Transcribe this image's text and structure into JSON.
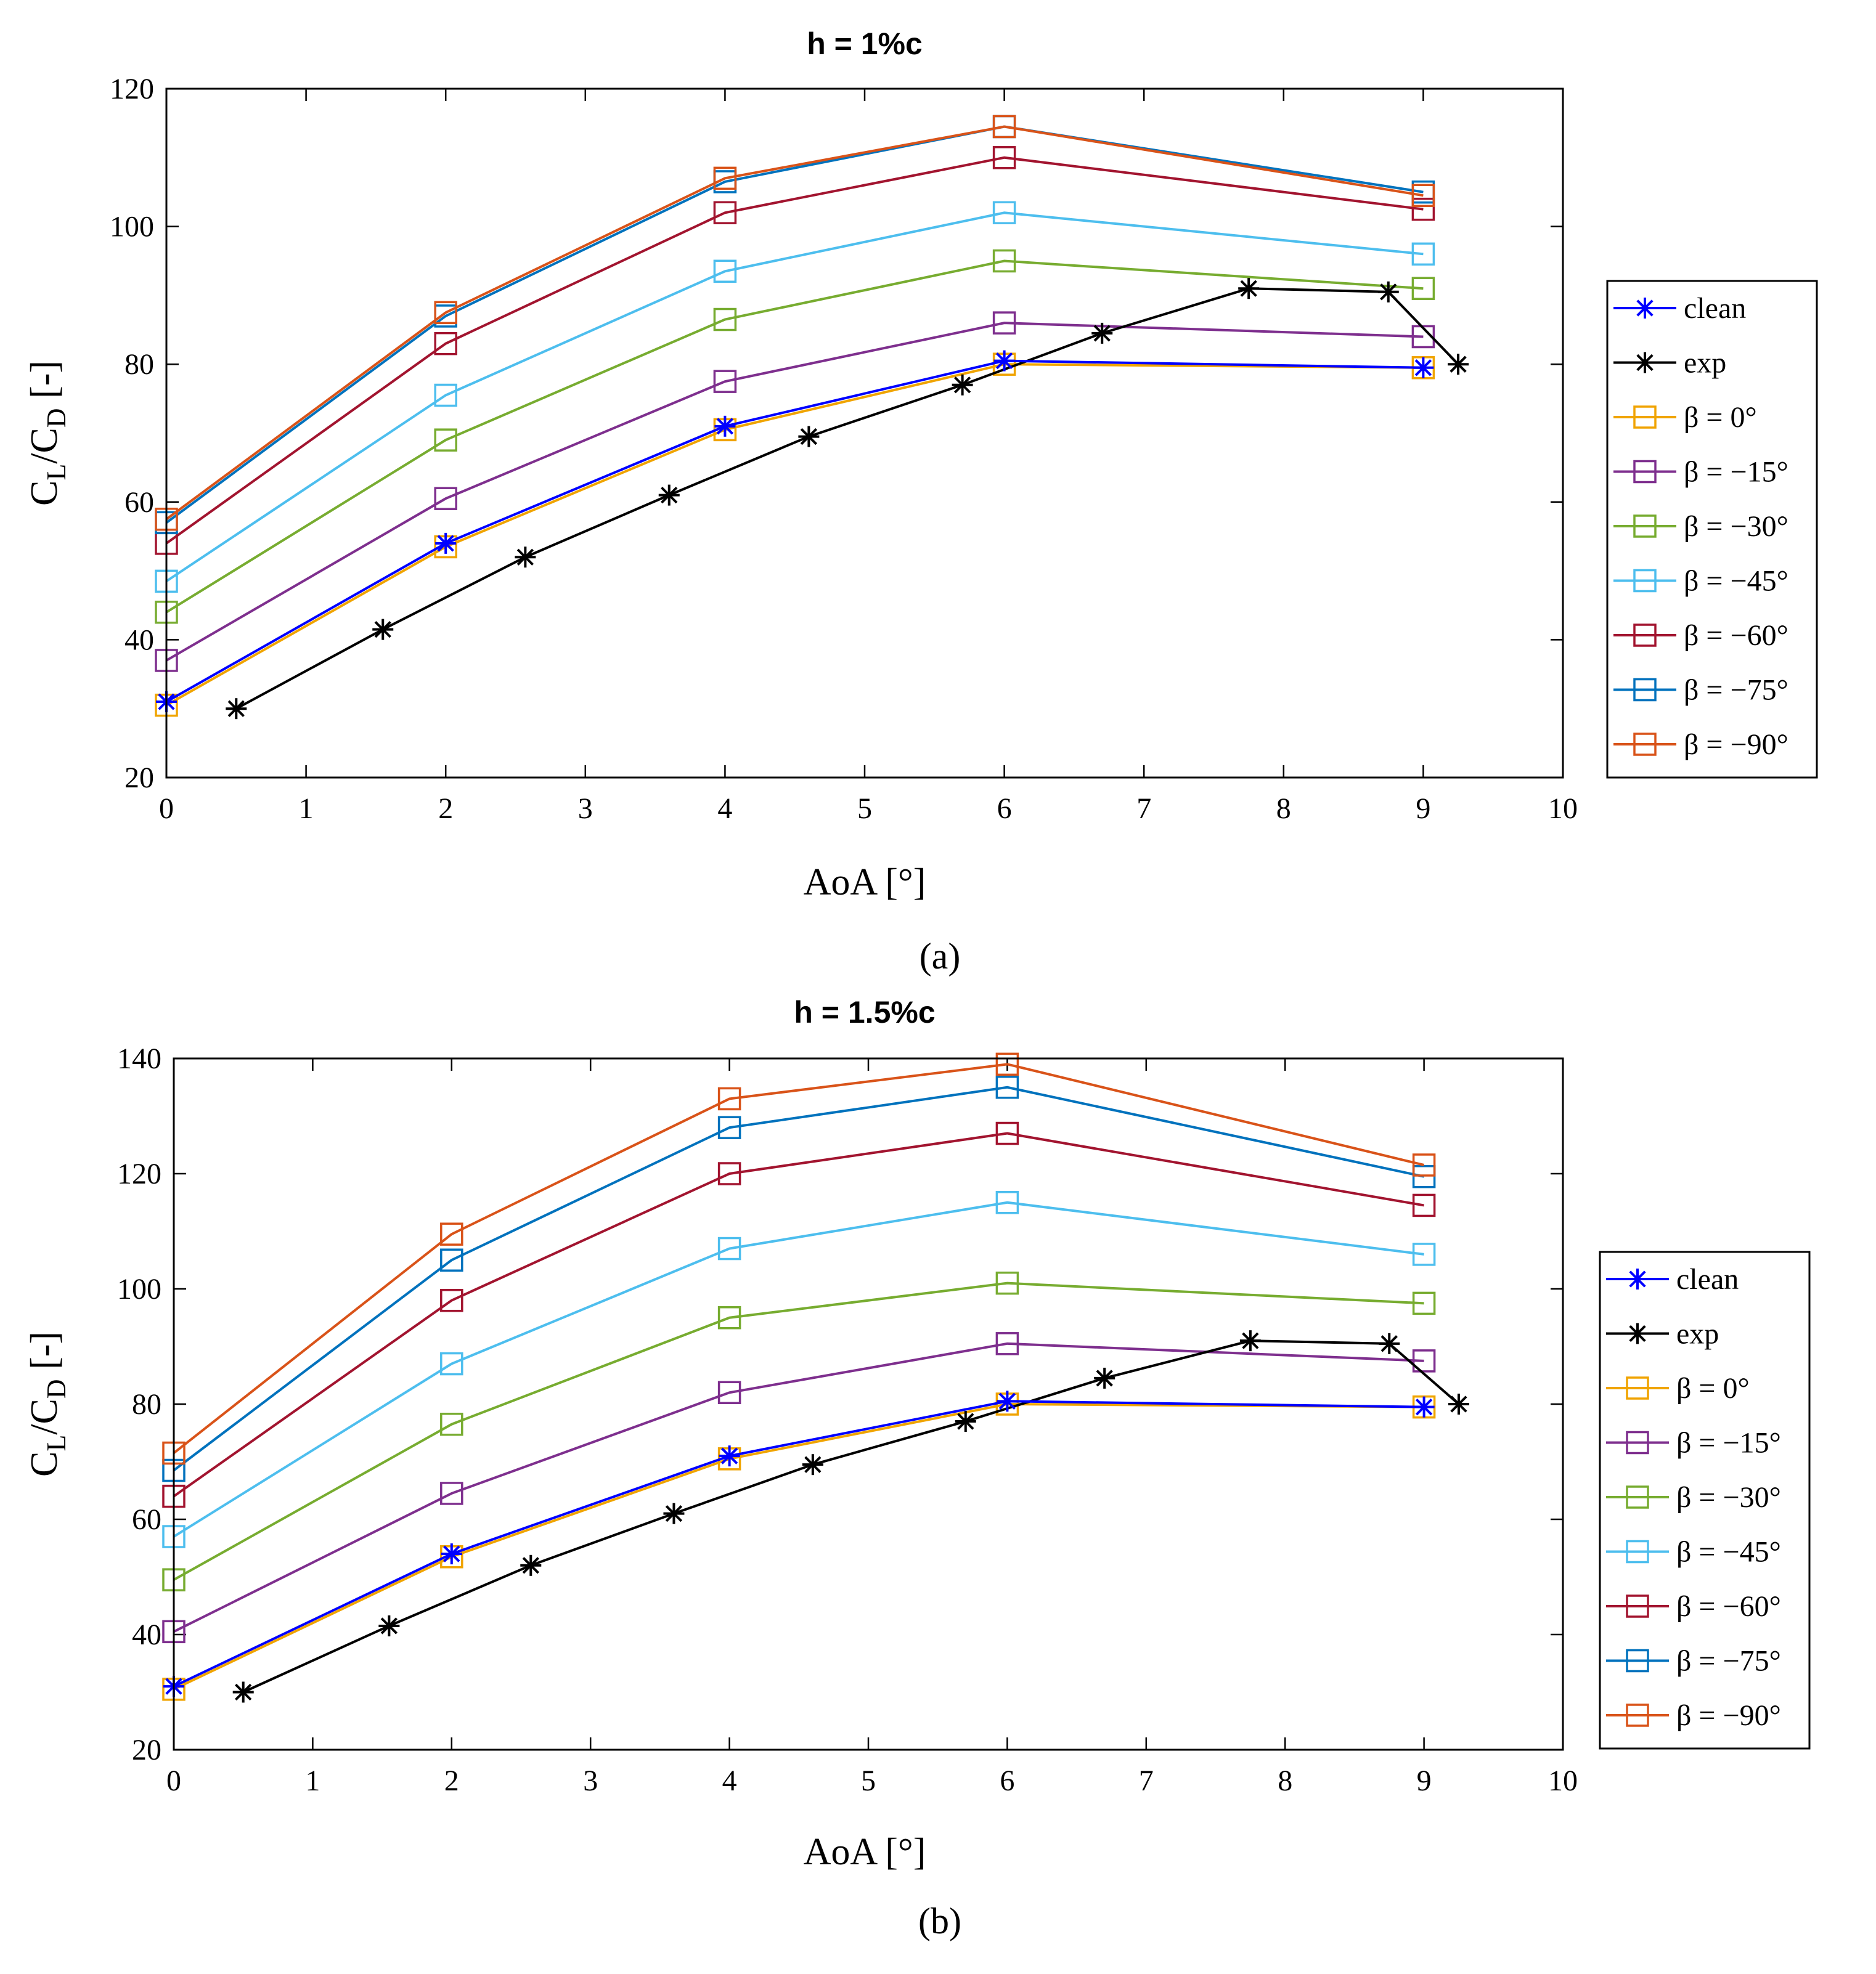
{
  "figure": {
    "captions": [
      "(a)",
      "(b)"
    ]
  },
  "chart_data": [
    {
      "type": "line",
      "title": "h = 1%c",
      "xlabel": "AoA [°]",
      "ylabel": "C_L/C_D [-]",
      "xlim": [
        0,
        10
      ],
      "ylim": [
        20,
        120
      ],
      "xticks": [
        0,
        1,
        2,
        3,
        4,
        5,
        6,
        7,
        8,
        9,
        10
      ],
      "yticks": [
        20,
        40,
        60,
        80,
        100,
        120
      ],
      "grid": false,
      "legend_position": "outside-right",
      "series": [
        {
          "name": "clean",
          "color": "#0000ff",
          "marker": "asterisk",
          "x": [
            0,
            2,
            4,
            6,
            9
          ],
          "y": [
            31,
            54,
            71,
            80.5,
            79.5
          ]
        },
        {
          "name": "exp",
          "color": "#000000",
          "marker": "asterisk",
          "x": [
            0.5,
            1.55,
            2.57,
            3.6,
            4.6,
            5.7,
            6.7,
            7.75,
            8.75,
            9.25
          ],
          "y": [
            30,
            41.5,
            52,
            61,
            69.5,
            77,
            84.5,
            91,
            90.5,
            80
          ]
        },
        {
          "name": "β = 0°",
          "color": "#f0a400",
          "marker": "square",
          "x": [
            0,
            2,
            4,
            6,
            9
          ],
          "y": [
            30.5,
            53.5,
            70.5,
            80,
            79.5
          ]
        },
        {
          "name": "β = −15°",
          "color": "#7e2f8e",
          "marker": "square",
          "x": [
            0,
            2,
            4,
            6,
            9
          ],
          "y": [
            37,
            60.5,
            77.5,
            86,
            84
          ]
        },
        {
          "name": "β = −30°",
          "color": "#77ac30",
          "marker": "square",
          "x": [
            0,
            2,
            4,
            6,
            9
          ],
          "y": [
            44,
            69,
            86.5,
            95,
            91
          ]
        },
        {
          "name": "β = −45°",
          "color": "#4dbeee",
          "marker": "square",
          "x": [
            0,
            2,
            4,
            6,
            9
          ],
          "y": [
            48.5,
            75.5,
            93.5,
            102,
            96
          ]
        },
        {
          "name": "β = −60°",
          "color": "#a2142f",
          "marker": "square",
          "x": [
            0,
            2,
            4,
            6,
            9
          ],
          "y": [
            54,
            83,
            102,
            110,
            102.5
          ]
        },
        {
          "name": "β = −75°",
          "color": "#0072bd",
          "marker": "square",
          "x": [
            0,
            2,
            4,
            6,
            9
          ],
          "y": [
            57,
            87,
            106.5,
            114.5,
            105
          ]
        },
        {
          "name": "β = −90°",
          "color": "#d95319",
          "marker": "square",
          "x": [
            0,
            2,
            4,
            6,
            9
          ],
          "y": [
            57.5,
            87.5,
            107,
            114.5,
            104.5
          ]
        }
      ]
    },
    {
      "type": "line",
      "title": "h = 1.5%c",
      "xlabel": "AoA [°]",
      "ylabel": "C_L/C_D [-]",
      "xlim": [
        0,
        10
      ],
      "ylim": [
        20,
        140
      ],
      "xticks": [
        0,
        1,
        2,
        3,
        4,
        5,
        6,
        7,
        8,
        9,
        10
      ],
      "yticks": [
        20,
        40,
        60,
        80,
        100,
        120,
        140
      ],
      "grid": false,
      "legend_position": "outside-right",
      "series": [
        {
          "name": "clean",
          "color": "#0000ff",
          "marker": "asterisk",
          "x": [
            0,
            2,
            4,
            6,
            9
          ],
          "y": [
            31,
            54,
            71,
            80.5,
            79.5
          ]
        },
        {
          "name": "exp",
          "color": "#000000",
          "marker": "asterisk",
          "x": [
            0.5,
            1.55,
            2.57,
            3.6,
            4.6,
            5.7,
            6.7,
            7.75,
            8.75,
            9.25
          ],
          "y": [
            30,
            41.5,
            52,
            61,
            69.5,
            77,
            84.5,
            91,
            90.5,
            80
          ]
        },
        {
          "name": "β = 0°",
          "color": "#f0a400",
          "marker": "square",
          "x": [
            0,
            2,
            4,
            6,
            9
          ],
          "y": [
            30.5,
            53.5,
            70.5,
            80,
            79.5
          ]
        },
        {
          "name": "β = −15°",
          "color": "#7e2f8e",
          "marker": "square",
          "x": [
            0,
            2,
            4,
            6,
            9
          ],
          "y": [
            40.5,
            64.5,
            82,
            90.5,
            87.5
          ]
        },
        {
          "name": "β = −30°",
          "color": "#77ac30",
          "marker": "square",
          "x": [
            0,
            2,
            4,
            6,
            9
          ],
          "y": [
            49.5,
            76.5,
            95,
            101,
            97.5
          ]
        },
        {
          "name": "β = −45°",
          "color": "#4dbeee",
          "marker": "square",
          "x": [
            0,
            2,
            4,
            6,
            9
          ],
          "y": [
            57,
            87,
            107,
            115,
            106
          ]
        },
        {
          "name": "β = −60°",
          "color": "#a2142f",
          "marker": "square",
          "x": [
            0,
            2,
            4,
            6,
            9
          ],
          "y": [
            64,
            98,
            120,
            127,
            114.5
          ]
        },
        {
          "name": "β = −75°",
          "color": "#0072bd",
          "marker": "square",
          "x": [
            0,
            2,
            4,
            6,
            9
          ],
          "y": [
            68.5,
            105,
            128,
            135,
            119.5
          ]
        },
        {
          "name": "β = −90°",
          "color": "#d95319",
          "marker": "square",
          "x": [
            0,
            2,
            4,
            6,
            9
          ],
          "y": [
            71.5,
            109.5,
            133,
            139,
            121.5
          ]
        }
      ]
    }
  ]
}
